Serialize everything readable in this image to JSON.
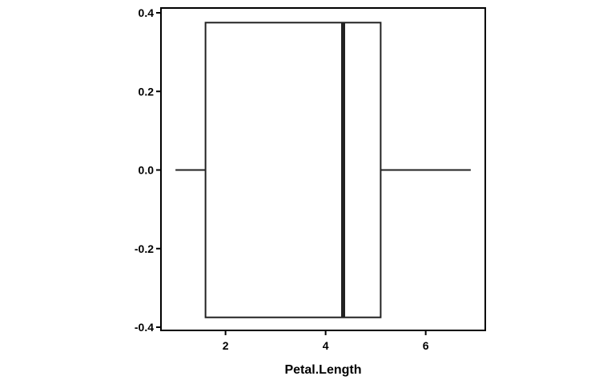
{
  "chart_data": {
    "type": "boxplot",
    "title": "",
    "xlabel": "Petal.Length",
    "ylabel": "",
    "orientation": "horizontal",
    "xlim": [
      0.71,
      7.19
    ],
    "ylim": [
      -0.4,
      0.4
    ],
    "x_ticks": [
      2,
      4,
      6
    ],
    "y_ticks": [
      -0.4,
      -0.2,
      0.0,
      0.2,
      0.4
    ],
    "x_tick_labels": [
      "2",
      "4",
      "6"
    ],
    "y_tick_labels": [
      "-0.4",
      "-0.2",
      "0.0",
      "0.2",
      "0.4"
    ],
    "grid": false,
    "box": {
      "min": 1.0,
      "q1": 1.6,
      "median": 4.35,
      "q3": 5.1,
      "max": 6.9,
      "y_center": 0.0,
      "half_width": 0.375
    },
    "colors": {
      "line": "#222222",
      "background": "#ffffff"
    }
  }
}
